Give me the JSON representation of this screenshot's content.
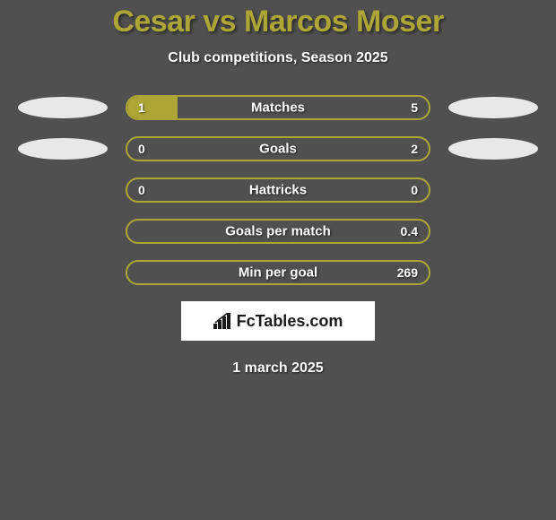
{
  "title": "Cesar vs Marcos Moser",
  "subtitle": "Club competitions, Season 2025",
  "date": "1 march 2025",
  "logo_text": "FcTables.com",
  "colors": {
    "background": "#505050",
    "accent": "#ada535",
    "text_white": "#ffffff",
    "avatar_bg": "#e8e8e8",
    "logo_bg": "#ffffff"
  },
  "bars": [
    {
      "label": "Matches",
      "left_value": "1",
      "right_value": "5",
      "fill_percent": 16.67,
      "show_avatars": true
    },
    {
      "label": "Goals",
      "left_value": "0",
      "right_value": "2",
      "fill_percent": 0,
      "show_avatars": true
    },
    {
      "label": "Hattricks",
      "left_value": "0",
      "right_value": "0",
      "fill_percent": 0,
      "show_avatars": false
    },
    {
      "label": "Goals per match",
      "left_value": "",
      "right_value": "0.4",
      "fill_percent": 0,
      "show_avatars": false
    },
    {
      "label": "Min per goal",
      "left_value": "",
      "right_value": "269",
      "fill_percent": 0,
      "show_avatars": false
    }
  ]
}
